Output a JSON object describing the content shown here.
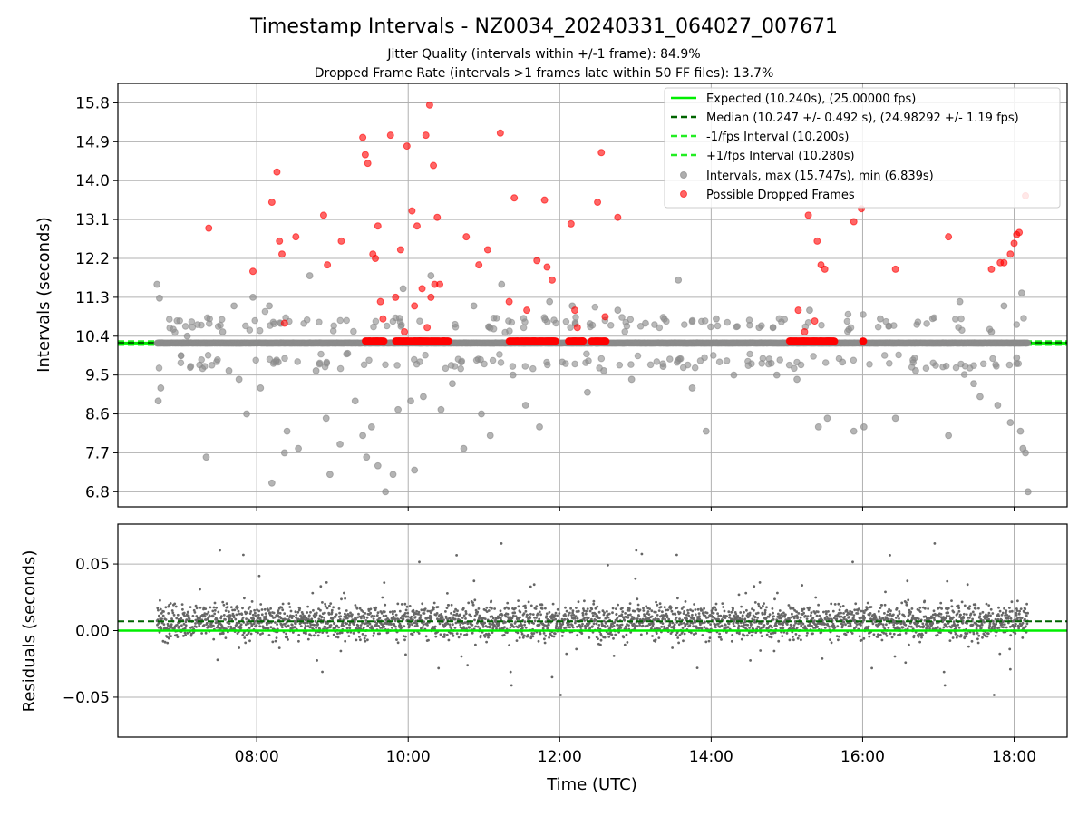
{
  "figure": {
    "title": "Timestamp Intervals - NZ0034_20240331_064027_007671",
    "subtitle1": "Jitter Quality (intervals within +/-1 frame): 84.9%",
    "subtitle2": "Dropped Frame Rate (intervals >1 frames late within 50 FF files): 13.7%"
  },
  "colors": {
    "expected": "#00ee00",
    "median": "#006400",
    "interval_bounds": "#22ee22",
    "intervals": "#8c8c8c",
    "dropped": "#ff0000",
    "residuals": "#666666"
  },
  "chart_data": [
    {
      "type": "scatter",
      "ylabel": "Intervals (seconds)",
      "xlim": [
        "06:10",
        "18:42"
      ],
      "ylim": [
        6.45,
        16.25
      ],
      "yticks": [
        "6.8",
        "7.7",
        "8.6",
        "9.5",
        "10.4",
        "11.3",
        "12.2",
        "13.1",
        "14.0",
        "14.9",
        "15.8"
      ],
      "grid": true,
      "legend_position": "upper right",
      "legend": [
        "Expected (10.240s), (25.00000 fps)",
        "Median (10.247 +/- 0.492 s), (24.98292 +/- 1.19 fps)",
        "-1/fps Interval (10.200s)",
        "+1/fps Interval (10.280s)",
        "Intervals, max (15.747s), min (6.839s)",
        "Possible Dropped Frames"
      ],
      "lines": {
        "expected": 10.24,
        "median": 10.247,
        "minus_one_frame": 10.2,
        "plus_one_frame": 10.28
      },
      "series": [
        {
          "name": "Intervals, max (15.747s), min (6.839s)",
          "points": [
            [
              "06:41",
              11.6
            ],
            [
              "06:43",
              11.28
            ],
            [
              "06:42",
              8.9
            ],
            [
              "06:44",
              9.2
            ],
            [
              "07:05",
              10.4
            ],
            [
              "07:20",
              7.6
            ],
            [
              "07:33",
              10.5
            ],
            [
              "07:38",
              9.6
            ],
            [
              "07:42",
              11.1
            ],
            [
              "07:46",
              9.4
            ],
            [
              "07:52",
              8.6
            ],
            [
              "07:57",
              11.3
            ],
            [
              "08:03",
              9.2
            ],
            [
              "08:10",
              11.1
            ],
            [
              "08:12",
              7.0
            ],
            [
              "08:17",
              9.8
            ],
            [
              "08:22",
              7.7
            ],
            [
              "08:24",
              8.2
            ],
            [
              "08:33",
              7.8
            ],
            [
              "08:42",
              11.8
            ],
            [
              "08:47",
              9.6
            ],
            [
              "08:55",
              8.5
            ],
            [
              "08:58",
              7.2
            ],
            [
              "09:06",
              7.9
            ],
            [
              "09:12",
              10.0
            ],
            [
              "09:18",
              8.9
            ],
            [
              "09:24",
              8.1
            ],
            [
              "09:27",
              7.6
            ],
            [
              "09:31",
              8.3
            ],
            [
              "09:36",
              7.4
            ],
            [
              "09:42",
              6.8
            ],
            [
              "09:48",
              7.2
            ],
            [
              "09:52",
              8.7
            ],
            [
              "09:56",
              11.5
            ],
            [
              "10:02",
              8.9
            ],
            [
              "10:05",
              7.3
            ],
            [
              "10:12",
              9.0
            ],
            [
              "10:18",
              11.8
            ],
            [
              "10:26",
              8.7
            ],
            [
              "10:35",
              9.3
            ],
            [
              "10:44",
              7.8
            ],
            [
              "10:52",
              11.1
            ],
            [
              "10:58",
              8.6
            ],
            [
              "11:05",
              8.1
            ],
            [
              "11:14",
              11.6
            ],
            [
              "11:23",
              9.5
            ],
            [
              "11:33",
              8.8
            ],
            [
              "11:44",
              8.3
            ],
            [
              "11:52",
              11.2
            ],
            [
              "12:02",
              9.8
            ],
            [
              "12:10",
              11.1
            ],
            [
              "12:22",
              9.1
            ],
            [
              "12:35",
              9.6
            ],
            [
              "12:46",
              11.0
            ],
            [
              "12:57",
              9.4
            ],
            [
              "13:08",
              10.7
            ],
            [
              "13:22",
              9.7
            ],
            [
              "13:34",
              11.7
            ],
            [
              "13:45",
              9.2
            ],
            [
              "13:56",
              8.2
            ],
            [
              "14:04",
              10.8
            ],
            [
              "14:18",
              9.5
            ],
            [
              "14:38",
              10.6
            ],
            [
              "14:52",
              9.5
            ],
            [
              "15:08",
              9.4
            ],
            [
              "15:18",
              11.0
            ],
            [
              "15:25",
              8.3
            ],
            [
              "15:32",
              8.5
            ],
            [
              "15:44",
              9.8
            ],
            [
              "15:53",
              8.2
            ],
            [
              "16:01",
              8.3
            ],
            [
              "16:14",
              10.8
            ],
            [
              "16:26",
              8.5
            ],
            [
              "16:42",
              9.6
            ],
            [
              "17:08",
              8.1
            ],
            [
              "17:17",
              11.2
            ],
            [
              "17:28",
              9.3
            ],
            [
              "17:33",
              9.0
            ],
            [
              "17:42",
              10.5
            ],
            [
              "17:47",
              8.8
            ],
            [
              "17:52",
              11.1
            ],
            [
              "17:57",
              8.4
            ],
            [
              "18:02",
              9.9
            ],
            [
              "18:05",
              8.2
            ],
            [
              "18:07",
              7.8
            ],
            [
              "18:09",
              7.7
            ],
            [
              "18:11",
              6.8
            ],
            [
              "18:06",
              11.4
            ]
          ]
        },
        {
          "name": "Possible Dropped Frames",
          "points": [
            [
              "07:22",
              12.9
            ],
            [
              "07:57",
              11.9
            ],
            [
              "08:12",
              13.5
            ],
            [
              "08:16",
              14.2
            ],
            [
              "08:18",
              12.6
            ],
            [
              "08:20",
              12.3
            ],
            [
              "08:22",
              10.7
            ],
            [
              "08:31",
              12.7
            ],
            [
              "08:53",
              13.2
            ],
            [
              "08:56",
              12.05
            ],
            [
              "09:07",
              12.6
            ],
            [
              "09:24",
              15.0
            ],
            [
              "09:26",
              14.6
            ],
            [
              "09:28",
              14.4
            ],
            [
              "09:32",
              12.3
            ],
            [
              "09:34",
              12.2
            ],
            [
              "09:36",
              12.95
            ],
            [
              "09:38",
              11.2
            ],
            [
              "09:40",
              10.8
            ],
            [
              "09:46",
              15.05
            ],
            [
              "09:50",
              11.3
            ],
            [
              "09:54",
              12.4
            ],
            [
              "09:57",
              10.5
            ],
            [
              "09:59",
              14.8
            ],
            [
              "10:03",
              13.3
            ],
            [
              "10:05",
              11.1
            ],
            [
              "10:07",
              12.95
            ],
            [
              "10:11",
              11.5
            ],
            [
              "10:14",
              15.05
            ],
            [
              "10:15",
              10.6
            ],
            [
              "10:17",
              15.75
            ],
            [
              "10:18",
              11.3
            ],
            [
              "10:20",
              14.35
            ],
            [
              "10:21",
              11.6
            ],
            [
              "10:23",
              13.15
            ],
            [
              "10:25",
              11.6
            ],
            [
              "10:46",
              12.7
            ],
            [
              "10:56",
              12.05
            ],
            [
              "11:03",
              12.4
            ],
            [
              "11:13",
              15.1
            ],
            [
              "11:20",
              11.2
            ],
            [
              "11:24",
              13.6
            ],
            [
              "11:34",
              11.0
            ],
            [
              "11:42",
              12.15
            ],
            [
              "11:48",
              13.55
            ],
            [
              "11:50",
              12.0
            ],
            [
              "11:54",
              11.7
            ],
            [
              "12:09",
              13.0
            ],
            [
              "12:12",
              11.0
            ],
            [
              "12:14",
              10.6
            ],
            [
              "12:30",
              13.5
            ],
            [
              "12:33",
              14.65
            ],
            [
              "12:36",
              10.85
            ],
            [
              "12:46",
              13.15
            ],
            [
              "15:09",
              11.0
            ],
            [
              "15:14",
              10.5
            ],
            [
              "15:17",
              13.2
            ],
            [
              "15:22",
              10.75
            ],
            [
              "15:24",
              12.6
            ],
            [
              "15:27",
              12.05
            ],
            [
              "15:30",
              11.95
            ],
            [
              "15:53",
              13.05
            ],
            [
              "15:59",
              13.35
            ],
            [
              "16:26",
              11.95
            ],
            [
              "17:08",
              12.7
            ],
            [
              "17:42",
              11.95
            ],
            [
              "17:49",
              12.1
            ],
            [
              "17:52",
              12.1
            ],
            [
              "17:57",
              12.3
            ],
            [
              "18:00",
              12.55
            ],
            [
              "18:02",
              12.75
            ],
            [
              "18:04",
              12.8
            ],
            [
              "18:09",
              13.65
            ]
          ],
          "cluster_value": 10.285,
          "clusters": [
            [
              "09:26",
              "09:41"
            ],
            [
              "09:50",
              "10:32"
            ],
            [
              "11:20",
              "11:57"
            ],
            [
              "12:07",
              "12:19"
            ],
            [
              "12:25",
              "12:37"
            ],
            [
              "15:02",
              "15:38"
            ],
            [
              "16:00",
              "16:01"
            ]
          ]
        }
      ]
    },
    {
      "type": "scatter",
      "xlabel": "Time (UTC)",
      "ylabel": "Residuals (seconds)",
      "xlim": [
        "06:10",
        "18:42"
      ],
      "ylim": [
        -0.08,
        0.08
      ],
      "yticks": [
        0.05,
        0.0,
        -0.05
      ],
      "ytick_labels": [
        "0.05",
        "0.00",
        "−0.05"
      ],
      "xticks": [
        "08:00",
        "10:00",
        "12:00",
        "14:00",
        "16:00",
        "18:00"
      ],
      "grid": true,
      "lines": {
        "expected": 0.0,
        "median": 0.007
      },
      "series": [
        {
          "name": "",
          "points": [
            [
              "06:50",
              0.018
            ],
            [
              "07:02",
              -0.004
            ],
            [
              "07:15",
              0.031
            ],
            [
              "07:29",
              -0.022
            ],
            [
              "07:44",
              0.012
            ],
            [
              "08:02",
              0.041
            ],
            [
              "08:18",
              -0.013
            ],
            [
              "08:35",
              0.006
            ],
            [
              "08:52",
              -0.031
            ],
            [
              "09:10",
              0.024
            ],
            [
              "09:26",
              -0.008
            ],
            [
              "09:41",
              0.036
            ],
            [
              "09:58",
              -0.018
            ],
            [
              "10:14",
              0.009
            ],
            [
              "10:31",
              0.028
            ],
            [
              "10:47",
              -0.026
            ],
            [
              "11:04",
              0.015
            ],
            [
              "11:20",
              -0.011
            ],
            [
              "11:37",
              0.033
            ],
            [
              "11:54",
              -0.035
            ],
            [
              "12:10",
              0.004
            ],
            [
              "12:27",
              0.022
            ],
            [
              "12:43",
              -0.019
            ],
            [
              "13:00",
              0.039
            ],
            [
              "13:16",
              -0.007
            ],
            [
              "13:33",
              0.017
            ],
            [
              "13:49",
              -0.028
            ],
            [
              "14:06",
              0.011
            ],
            [
              "14:22",
              0.027
            ],
            [
              "14:39",
              -0.015
            ],
            [
              "14:55",
              0.005
            ],
            [
              "15:12",
              0.034
            ],
            [
              "15:28",
              -0.021
            ],
            [
              "15:45",
              0.013
            ],
            [
              "16:01",
              -0.006
            ],
            [
              "16:18",
              0.029
            ],
            [
              "16:34",
              -0.024
            ],
            [
              "16:51",
              0.008
            ],
            [
              "17:07",
              0.037
            ],
            [
              "17:24",
              -0.012
            ],
            [
              "17:40",
              0.019
            ],
            [
              "17:57",
              -0.029
            ],
            [
              "18:08",
              0.014
            ]
          ]
        }
      ]
    }
  ]
}
